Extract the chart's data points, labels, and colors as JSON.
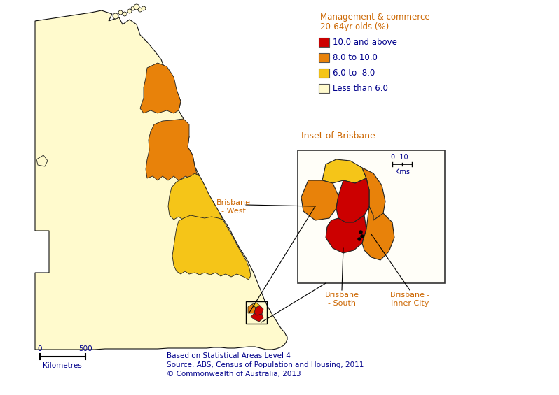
{
  "legend_title_line1": "Management & commerce",
  "legend_title_line2": "20-64yr olds (%)",
  "legend_items": [
    {
      "label": "10.0 and above",
      "color": "#CC0000"
    },
    {
      "label": "8.0 to 10.0",
      "color": "#E8820A"
    },
    {
      "label": "6.0 to  8.0",
      "color": "#F5C518"
    },
    {
      "label": "Less than 6.0",
      "color": "#FFFACD"
    }
  ],
  "footnote_line1": "Based on Statistical Areas Level 4",
  "footnote_line2": "Source: ABS, Census of Population and Housing, 2011",
  "footnote_line3": "© Commonwealth of Australia, 2013",
  "text_color": "#00008B",
  "orange_text_color": "#CC6600",
  "background_color": "#FFFFFF",
  "label_brisbane_west": "Brisbane\n- West",
  "label_brisbane_south": "Brisbane\n- South",
  "label_brisbane_inner": "Brisbane -\nInner City",
  "label_inset": "Inset of Brisbane",
  "scale_0": "0",
  "scale_500": "500",
  "scale_unit": "Kilometres",
  "inset_scale": "0  10",
  "inset_kms": "Kms"
}
